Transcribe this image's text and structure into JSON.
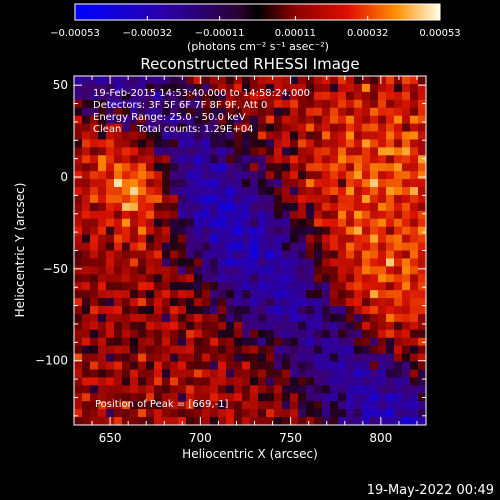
{
  "chart_data": {
    "type": "heatmap",
    "title": "Reconstructed RHESSI Image",
    "xlabel": "Heliocentric X (arcsec)",
    "ylabel": "Heliocentric Y (arcsec)",
    "xlim": [
      630,
      825
    ],
    "ylim": [
      -135,
      55
    ],
    "x_ticks": [
      650,
      700,
      750,
      800
    ],
    "y_ticks": [
      50,
      0,
      -50,
      -100
    ],
    "colorbar": {
      "min": -0.00053,
      "max": 0.00053,
      "ticks": [
        -0.00053,
        -0.00032,
        -0.00011,
        0.00011,
        0.00032,
        0.00053
      ],
      "tick_labels": [
        "-0.00053",
        "-0.00032",
        "-0.00011",
        "0.00011",
        "0.00032",
        "0.00053"
      ],
      "label": "(photons cm⁻² s⁻¹ asec⁻²)"
    },
    "annotations": [
      "19-Feb-2015 14:53:40.000 to 14:58:24.000",
      "Detectors: 3F 5F 6F 7F 8F 9F, Att 0",
      "Energy Range: 25.0 - 50.0 keV",
      "Clean     Total counts: 1.29E+04"
    ],
    "peak_label": "Position of Peak = [669,-1]",
    "peak": [
      669,
      -1
    ],
    "grid": false
  },
  "footer_timestamp": "19-May-2022 00:49"
}
